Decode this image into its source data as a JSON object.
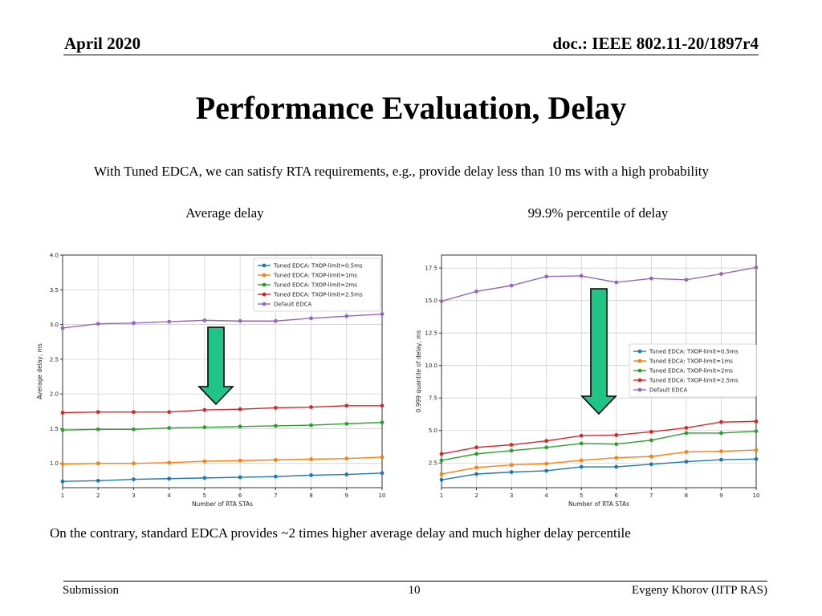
{
  "header": {
    "date": "April 2020",
    "doc": "doc.: IEEE 802.11-20/1897r4"
  },
  "title": "Performance Evaluation, Delay",
  "intro": "With Tuned EDCA, we can satisfy RTA requirements, e.g., provide delay less than 10 ms with a high probability",
  "captions": {
    "left": "Average delay",
    "right": "99.9% percentile of delay"
  },
  "note": "On the contrary, standard EDCA provides ~2 times higher average delay and much higher delay percentile",
  "footer": {
    "left": "Submission",
    "page": "10",
    "right": "Evgeny Khorov (IITP RAS)"
  },
  "colors": {
    "arrow_fill": "#21c488",
    "arrow_stroke": "#000000"
  },
  "chart_data": [
    {
      "type": "line",
      "xlabel": "Number of RTA STAs",
      "ylabel": "Average delay, ms",
      "x": [
        1,
        2,
        3,
        4,
        5,
        6,
        7,
        8,
        9,
        10
      ],
      "xlim": [
        1,
        10
      ],
      "ylim": [
        0.65,
        4.0
      ],
      "yticks": [
        1.0,
        1.5,
        2.0,
        2.5,
        3.0,
        3.5,
        4.0
      ],
      "ytick_labels": [
        "1.0",
        "1.5",
        "2.0",
        "2.5",
        "3.0",
        "3.5",
        "4.0"
      ],
      "grid": true,
      "legend_position": "top-right",
      "annotation": "down arrow",
      "series": [
        {
          "name": "Tuned EDCA: TXOP-limit=0.5ms",
          "color": "#1f77b4",
          "values": [
            0.74,
            0.75,
            0.77,
            0.78,
            0.79,
            0.8,
            0.81,
            0.83,
            0.84,
            0.86
          ]
        },
        {
          "name": "Tuned EDCA: TXOP-limit=1ms",
          "color": "#ff7f0e",
          "values": [
            0.99,
            1.0,
            1.0,
            1.01,
            1.03,
            1.04,
            1.05,
            1.06,
            1.07,
            1.09
          ]
        },
        {
          "name": "Tuned EDCA: TXOP-limit=2ms",
          "color": "#2ca02c",
          "values": [
            1.48,
            1.49,
            1.49,
            1.51,
            1.52,
            1.53,
            1.54,
            1.55,
            1.57,
            1.59
          ]
        },
        {
          "name": "Tuned EDCA: TXOP-limit=2.5ms",
          "color": "#d62728",
          "values": [
            1.73,
            1.74,
            1.74,
            1.74,
            1.77,
            1.78,
            1.8,
            1.81,
            1.83,
            1.83
          ]
        },
        {
          "name": "Default EDCA",
          "color": "#9467bd",
          "values": [
            2.95,
            3.01,
            3.02,
            3.04,
            3.06,
            3.05,
            3.05,
            3.09,
            3.12,
            3.15
          ]
        }
      ]
    },
    {
      "type": "line",
      "xlabel": "Number of RTA STAs",
      "ylabel": "0.999 quantile of delay, ms",
      "x": [
        1,
        2,
        3,
        4,
        5,
        6,
        7,
        8,
        9,
        10
      ],
      "xlim": [
        1,
        10
      ],
      "ylim": [
        0.6,
        18.5
      ],
      "yticks": [
        2.5,
        5.0,
        7.5,
        10.0,
        12.5,
        15.0,
        17.5
      ],
      "ytick_labels": [
        "2.5",
        "5.0",
        "7.5",
        "10.0",
        "12.5",
        "15.0",
        "17.5"
      ],
      "grid": true,
      "legend_position": "center-right",
      "annotation": "down arrow",
      "series": [
        {
          "name": "Tuned EDCA: TXOP-limit=0.5ms",
          "color": "#1f77b4",
          "values": [
            1.2,
            1.65,
            1.8,
            1.9,
            2.2,
            2.2,
            2.4,
            2.6,
            2.75,
            2.8
          ]
        },
        {
          "name": "Tuned EDCA: TXOP-limit=1ms",
          "color": "#ff7f0e",
          "values": [
            1.65,
            2.15,
            2.35,
            2.45,
            2.7,
            2.9,
            3.0,
            3.35,
            3.4,
            3.5
          ]
        },
        {
          "name": "Tuned EDCA: TXOP-limit=2ms",
          "color": "#2ca02c",
          "values": [
            2.7,
            3.2,
            3.45,
            3.7,
            4.0,
            3.95,
            4.25,
            4.8,
            4.8,
            4.95
          ]
        },
        {
          "name": "Tuned EDCA: TXOP-limit=2.5ms",
          "color": "#d62728",
          "values": [
            3.2,
            3.7,
            3.9,
            4.2,
            4.6,
            4.65,
            4.9,
            5.2,
            5.65,
            5.7
          ]
        },
        {
          "name": "Default EDCA",
          "color": "#9467bd",
          "values": [
            14.95,
            15.7,
            16.15,
            16.85,
            16.9,
            16.4,
            16.7,
            16.6,
            17.05,
            17.55
          ]
        }
      ]
    }
  ]
}
